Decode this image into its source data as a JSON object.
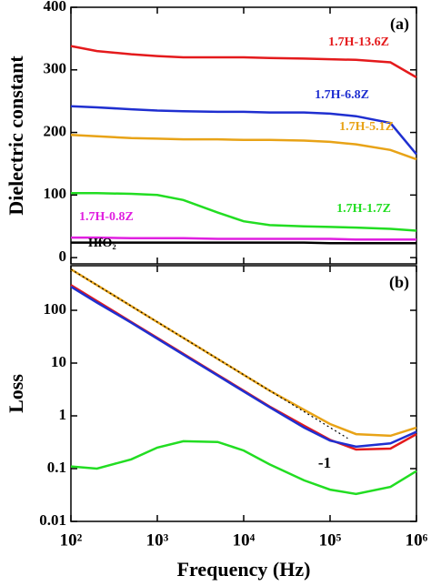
{
  "chart_data": [
    {
      "type": "line",
      "ylabel": "Dielectric constant",
      "annotation": "(a)",
      "xlim": [
        100,
        1000000
      ],
      "xlog": true,
      "ylim": [
        -10,
        400
      ],
      "yticks": [
        0,
        100,
        200,
        300,
        400
      ],
      "x": [
        100,
        200,
        500,
        1000,
        2000,
        5000,
        10000,
        20000,
        50000,
        100000,
        200000,
        500000,
        1000000
      ],
      "series": [
        {
          "name": "1.7H-13.6Z",
          "color": "#e41a1c",
          "values": [
            338,
            330,
            325,
            322,
            320,
            320,
            320,
            319,
            318,
            317,
            316,
            312,
            288
          ]
        },
        {
          "name": "1.7H-6.8Z",
          "color": "#1f2fd0",
          "values": [
            242,
            240,
            237,
            235,
            234,
            233,
            233,
            232,
            232,
            230,
            226,
            215,
            165
          ]
        },
        {
          "name": "1.7H-5.1Z",
          "color": "#e8a317",
          "values": [
            196,
            194,
            191,
            190,
            189,
            189,
            188,
            188,
            187,
            185,
            181,
            172,
            157
          ]
        },
        {
          "name": "1.7H-1.7Z",
          "color": "#22dd22",
          "values": [
            103,
            103,
            102,
            100,
            92,
            72,
            58,
            52,
            50,
            49,
            48,
            46,
            43
          ]
        },
        {
          "name": "1.7H-0.8Z",
          "color": "#e020e0",
          "values": [
            32,
            32,
            31,
            31,
            31,
            30,
            30,
            30,
            30,
            30,
            29,
            29,
            29
          ]
        },
        {
          "name": "HfO₂",
          "color": "#000000",
          "values": [
            24,
            24,
            24,
            24,
            24,
            24,
            24,
            24,
            24,
            23,
            23,
            23,
            23
          ]
        }
      ]
    },
    {
      "type": "line",
      "xlabel": "Frequency (Hz)",
      "ylabel": "Loss",
      "annotation": "(b)",
      "slope_label": "-1",
      "xlim": [
        100,
        1000000
      ],
      "xlog": true,
      "xticks": [
        {
          "value": 100,
          "label": "10²"
        },
        {
          "value": 1000,
          "label": "10³"
        },
        {
          "value": 10000,
          "label": "10⁴"
        },
        {
          "value": 100000,
          "label": "10⁵"
        },
        {
          "value": 1000000,
          "label": "10⁶"
        }
      ],
      "ylim": [
        0.01,
        700
      ],
      "ylog": true,
      "yticks": [
        0.01,
        0.1,
        1,
        10,
        100
      ],
      "x": [
        100,
        200,
        500,
        1000,
        2000,
        5000,
        10000,
        20000,
        50000,
        100000,
        200000,
        500000,
        1000000
      ],
      "series": [
        {
          "color": "#e8a317",
          "values": [
            600,
            300,
            120,
            60,
            30,
            12,
            6,
            3,
            1.3,
            0.7,
            0.45,
            0.42,
            0.6
          ]
        },
        {
          "color": "#e41a1c",
          "values": [
            300,
            150,
            60,
            30,
            15,
            6,
            3,
            1.5,
            0.65,
            0.35,
            0.23,
            0.24,
            0.45
          ]
        },
        {
          "color": "#1f2fd0",
          "values": [
            280,
            140,
            58,
            29,
            14.5,
            5.8,
            2.9,
            1.45,
            0.6,
            0.34,
            0.26,
            0.3,
            0.5
          ]
        },
        {
          "color": "#22dd22",
          "values": [
            0.11,
            0.1,
            0.15,
            0.25,
            0.33,
            0.32,
            0.22,
            0.12,
            0.06,
            0.04,
            0.033,
            0.045,
            0.09
          ]
        },
        {
          "color": "#000000",
          "dashed": true,
          "x": [
            100,
            160000
          ],
          "values": [
            600,
            0.375
          ]
        }
      ]
    }
  ]
}
